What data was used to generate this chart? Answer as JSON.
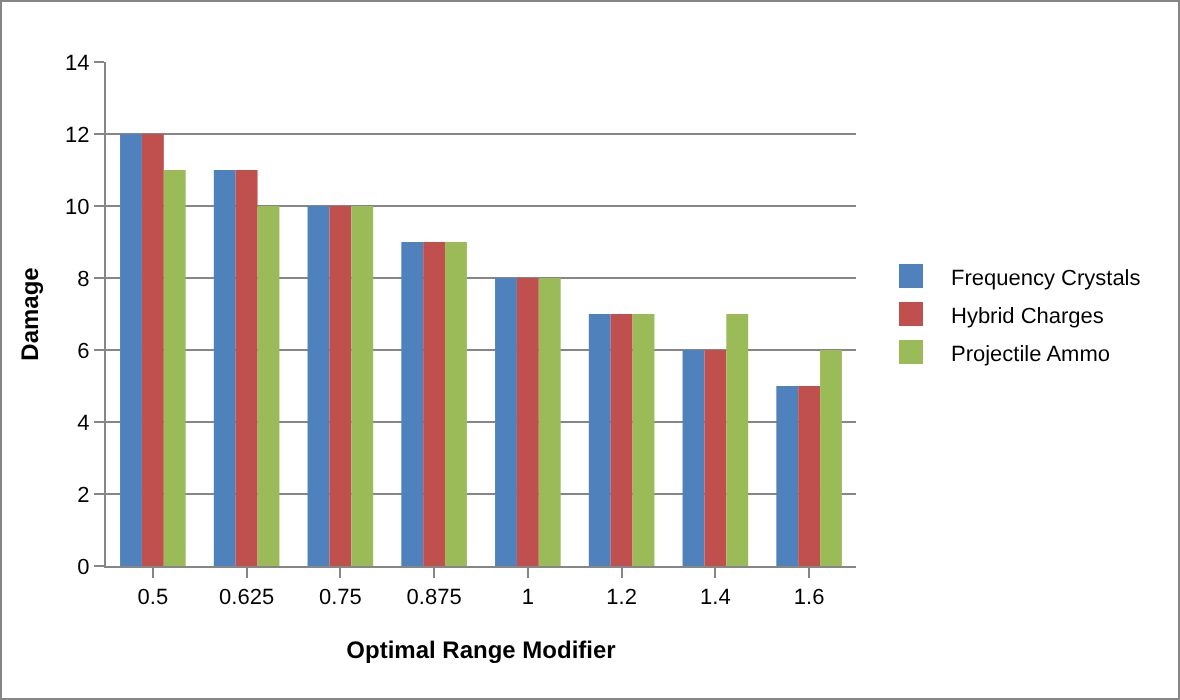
{
  "chart_data": {
    "type": "bar",
    "xlabel": "Optimal Range Modifier",
    "ylabel": "Damage",
    "categories": [
      "0.5",
      "0.625",
      "0.75",
      "0.875",
      "1",
      "1.2",
      "1.4",
      "1.6"
    ],
    "series": [
      {
        "name": "Frequency Crystals",
        "color": "#4f81bd",
        "values": [
          12,
          11,
          10,
          9,
          8,
          7,
          6,
          5
        ]
      },
      {
        "name": "Hybrid Charges",
        "color": "#c0504d",
        "values": [
          12,
          11,
          10,
          9,
          8,
          7,
          6,
          5
        ]
      },
      {
        "name": "Projectile Ammo",
        "color": "#9bbb59",
        "values": [
          11,
          10,
          10,
          9,
          8,
          7,
          7,
          6
        ]
      }
    ],
    "ylim": [
      0,
      14
    ],
    "yticks": [
      0,
      2,
      4,
      6,
      8,
      10,
      12,
      14
    ],
    "grid": "y",
    "legend": "right"
  }
}
